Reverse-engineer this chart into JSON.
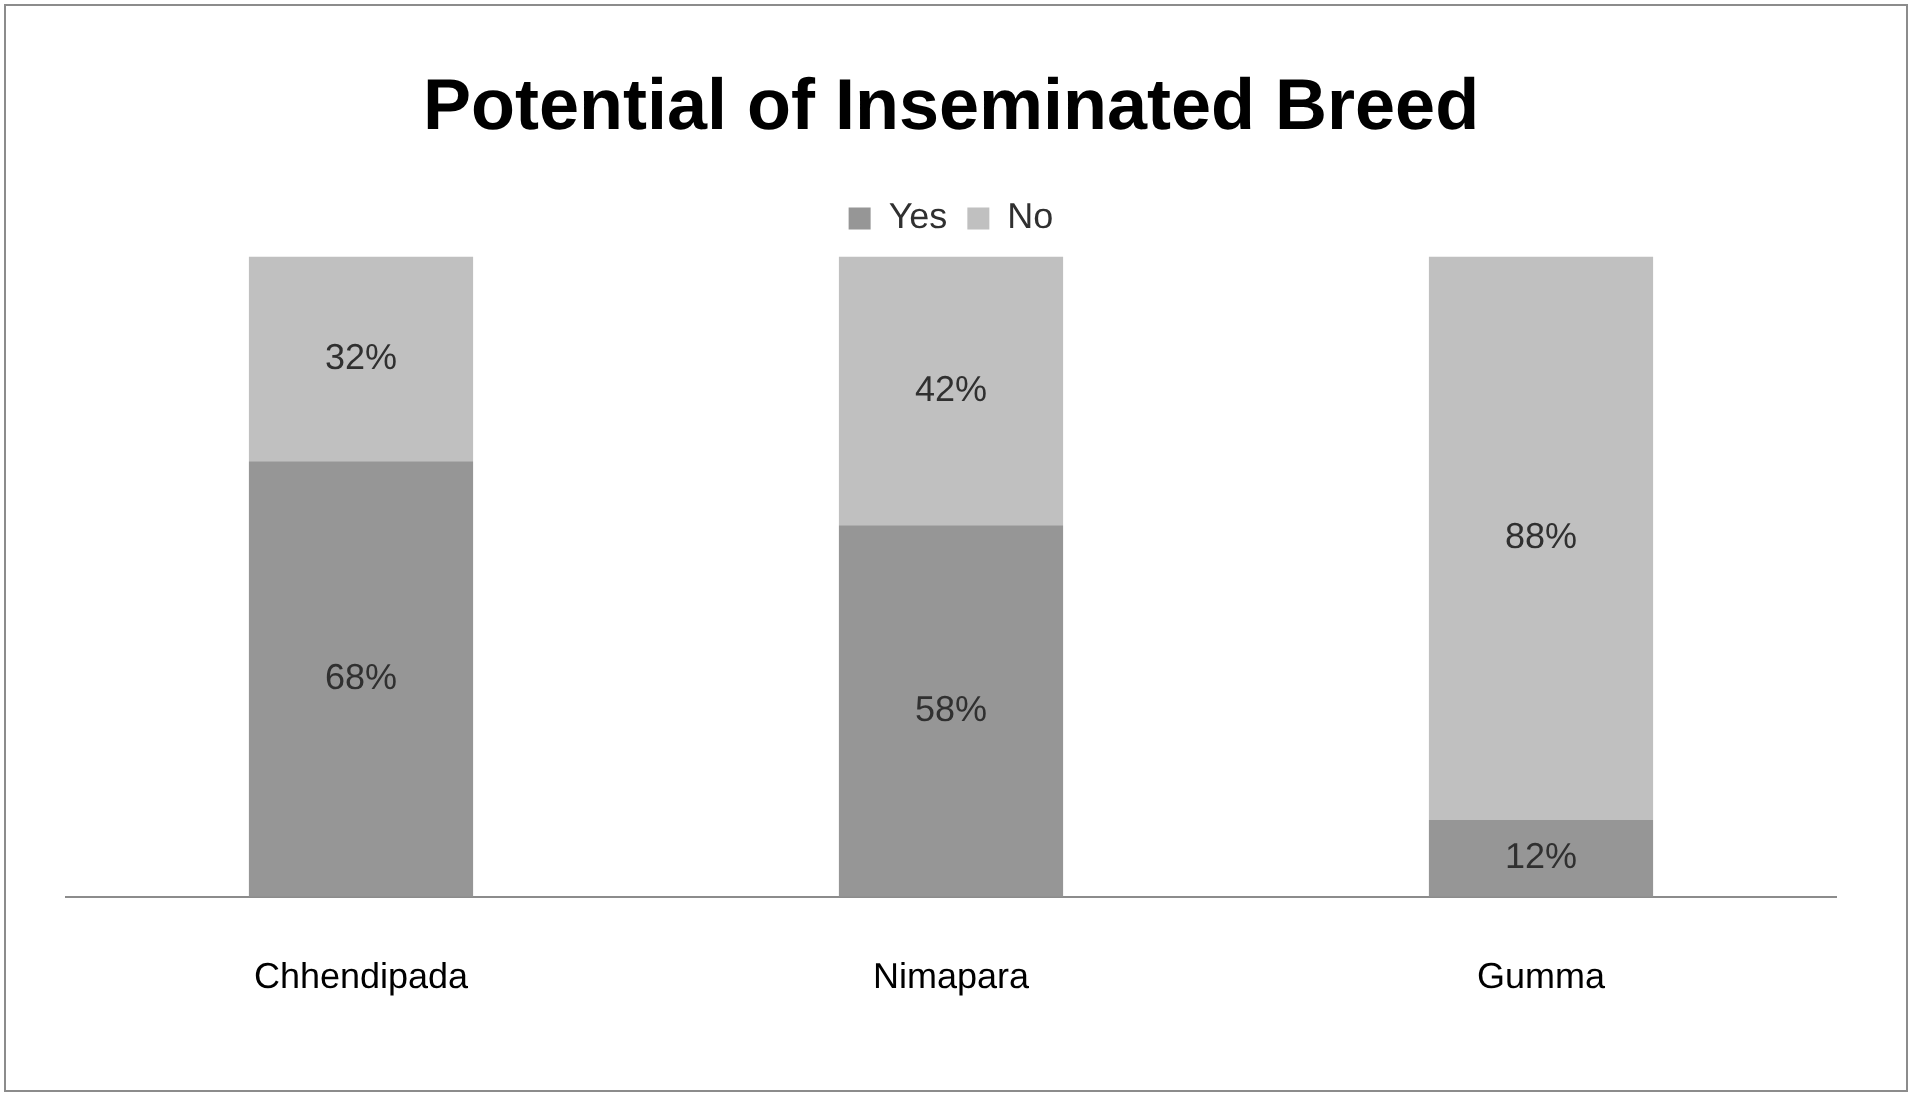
{
  "chart_data": {
    "type": "bar",
    "title": "Potential of Inseminated Breed",
    "categories": [
      "Chhendipada",
      "Nimapara",
      "Gumma"
    ],
    "stacked": true,
    "legend": "top",
    "grid": false,
    "tick_labels": "x",
    "series": [
      {
        "name": "Yes",
        "color": "#969696",
        "values": [
          68,
          58,
          12
        ],
        "value_labels": [
          "68%",
          "58%",
          "12%"
        ]
      },
      {
        "name": "No",
        "color": "#c0c0c0",
        "values": [
          32,
          42,
          88
        ],
        "value_labels": [
          "32%",
          "42%",
          "88%"
        ]
      }
    ]
  }
}
